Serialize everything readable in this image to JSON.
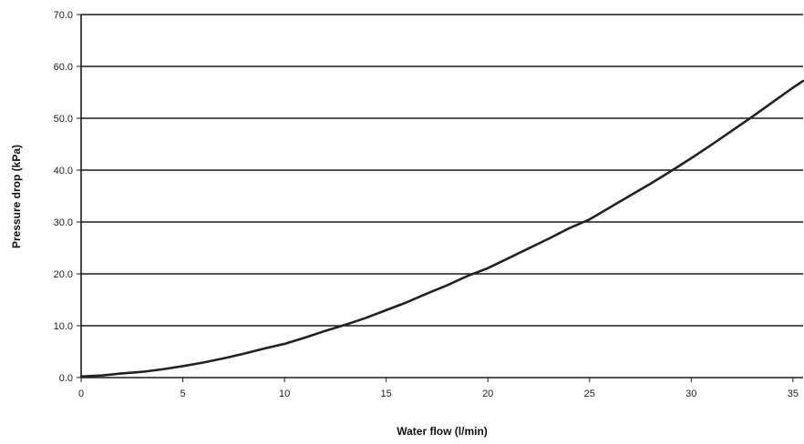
{
  "chart_data": {
    "type": "line",
    "title": "",
    "xlabel": "Water flow (l/min)",
    "ylabel": "Pressure drop (kPa)",
    "xlim": [
      0,
      35.5
    ],
    "ylim": [
      0,
      70
    ],
    "x_ticks": [
      0,
      5,
      10,
      15,
      20,
      25,
      30,
      35
    ],
    "x_tick_labels": [
      "0",
      "5",
      "10",
      "15",
      "20",
      "25",
      "30",
      "35"
    ],
    "y_ticks": [
      0,
      10,
      20,
      30,
      40,
      50,
      60,
      70
    ],
    "y_tick_labels": [
      "0.0",
      "10.0",
      "20.0",
      "30.0",
      "40.0",
      "50.0",
      "60.0",
      "70.0"
    ],
    "grid": "horizontal",
    "legend": "none",
    "series": [
      {
        "color": "#222222",
        "x": [
          0,
          1,
          2,
          3,
          4,
          5,
          6,
          7,
          8,
          9,
          10,
          11,
          12,
          13,
          14,
          15,
          16,
          17,
          18,
          19,
          20,
          21,
          22,
          23,
          24,
          25,
          26,
          27,
          28,
          29,
          30,
          31,
          32,
          33,
          34,
          35,
          35.5
        ],
        "y": [
          0.2,
          0.4,
          0.8,
          1.1,
          1.6,
          2.2,
          2.9,
          3.7,
          4.6,
          5.6,
          6.5,
          7.7,
          9.0,
          10.2,
          11.5,
          13.0,
          14.5,
          16.2,
          17.8,
          19.6,
          21.1,
          23.0,
          24.9,
          26.8,
          28.8,
          30.5,
          32.8,
          35.1,
          37.4,
          39.8,
          42.3,
          44.9,
          47.6,
          50.3,
          53.1,
          55.9,
          57.2
        ]
      }
    ]
  }
}
